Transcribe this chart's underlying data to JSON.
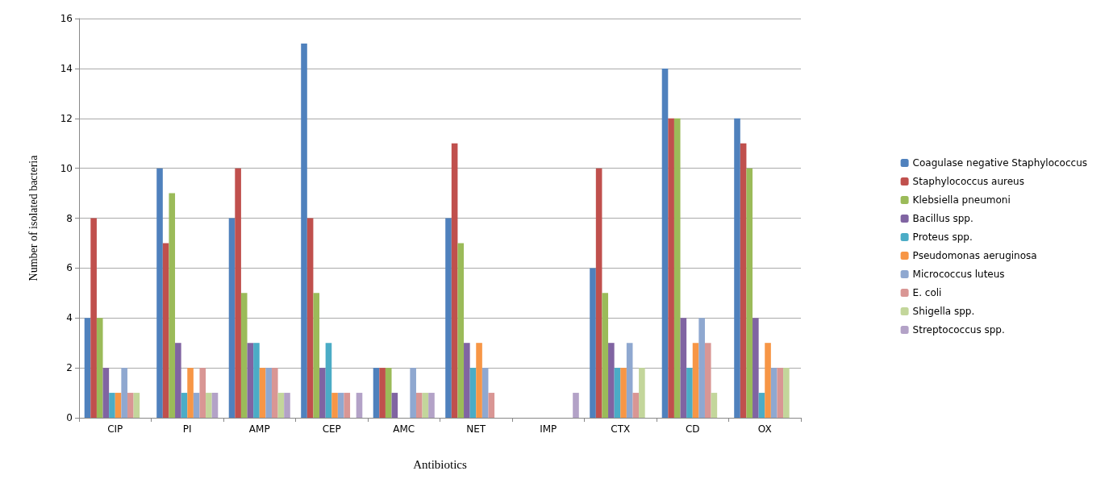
{
  "chart_data": {
    "type": "bar",
    "xlabel": "Antibiotics",
    "ylabel": "Number of isolated bacteria",
    "categories": [
      "CIP",
      "PI",
      "AMP",
      "CEP",
      "AMC",
      "NET",
      "IMP",
      "CTX",
      "CD",
      "OX"
    ],
    "ylim": [
      0,
      16
    ],
    "yticks": [
      0,
      2,
      4,
      6,
      8,
      10,
      12,
      14,
      16
    ],
    "grid": "y",
    "legend": "right",
    "series": [
      {
        "name": "Coagulase negative Staphylococcus",
        "color": "#4f81bd",
        "values": [
          4,
          10,
          8,
          15,
          2,
          8,
          0,
          6,
          14,
          12
        ]
      },
      {
        "name": "Staphylococcus aureus",
        "color": "#c0504d",
        "values": [
          8,
          7,
          10,
          8,
          2,
          11,
          0,
          10,
          12,
          11
        ]
      },
      {
        "name": "Klebsiella pneumoni",
        "color": "#9bbb59",
        "values": [
          4,
          9,
          5,
          5,
          2,
          7,
          0,
          5,
          12,
          10
        ]
      },
      {
        "name": "Bacillus spp.",
        "color": "#8064a2",
        "values": [
          2,
          3,
          3,
          2,
          1,
          3,
          0,
          3,
          4,
          4
        ]
      },
      {
        "name": "Proteus spp.",
        "color": "#4bacc6",
        "values": [
          1,
          1,
          3,
          3,
          0,
          2,
          0,
          2,
          2,
          1
        ]
      },
      {
        "name": "Pseudomonas aeruginosa",
        "color": "#f79646",
        "values": [
          1,
          2,
          2,
          1,
          0,
          3,
          0,
          2,
          3,
          3
        ]
      },
      {
        "name": "Micrococcus luteus",
        "color": "#8fa8d0",
        "values": [
          2,
          1,
          2,
          1,
          2,
          2,
          0,
          3,
          4,
          2
        ]
      },
      {
        "name": "E. coli",
        "color": "#d99694",
        "values": [
          1,
          2,
          2,
          1,
          1,
          1,
          0,
          1,
          3,
          2
        ]
      },
      {
        "name": "Shigella spp.",
        "color": "#c3d69b",
        "values": [
          1,
          1,
          1,
          0,
          1,
          0,
          0,
          2,
          1,
          2
        ]
      },
      {
        "name": "Streptococcus spp.",
        "color": "#b3a2c7",
        "values": [
          0,
          1,
          1,
          1,
          1,
          0,
          1,
          0,
          0,
          0
        ]
      }
    ]
  }
}
